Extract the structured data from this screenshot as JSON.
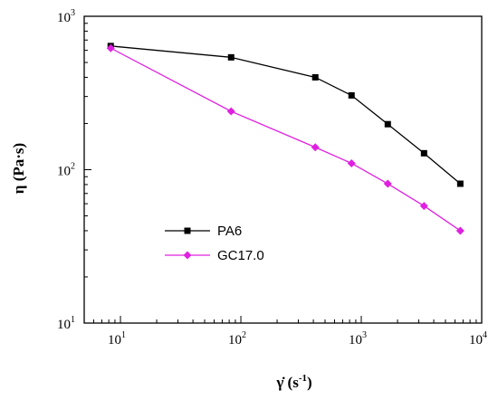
{
  "chart_data": {
    "type": "line",
    "title": "",
    "xlabel": {
      "main": "γ̇ (s",
      "sup": "-1",
      "close": ")"
    },
    "ylabel": "η (Pa·s)",
    "x_scale": "log",
    "y_scale": "log",
    "xlim": [
      5,
      10000
    ],
    "ylim": [
      10,
      1000
    ],
    "grid": false,
    "legend_position": "center-left",
    "x_ticks": [
      {
        "value": 10,
        "base": "10",
        "exp": "1"
      },
      {
        "value": 100,
        "base": "10",
        "exp": "2"
      },
      {
        "value": 1000,
        "base": "10",
        "exp": "3"
      },
      {
        "value": 10000,
        "base": "10",
        "exp": "4"
      }
    ],
    "y_ticks": [
      {
        "value": 10,
        "base": "10",
        "exp": "1"
      },
      {
        "value": 100,
        "base": "10",
        "exp": "2"
      },
      {
        "value": 1000,
        "base": "10",
        "exp": "3"
      }
    ],
    "series": [
      {
        "name": "PA6",
        "color": "#000000",
        "marker": "square",
        "x": [
          8.3,
          83,
          415,
          830,
          1660,
          3320,
          6640
        ],
        "y": [
          640,
          540,
          400,
          305,
          198,
          128,
          81
        ]
      },
      {
        "name": "GC17.0",
        "color": "#e020e0",
        "marker": "diamond",
        "x": [
          8.3,
          83,
          415,
          830,
          1660,
          3320,
          6640
        ],
        "y": [
          620,
          240,
          140,
          110,
          81,
          58,
          40
        ]
      }
    ]
  }
}
